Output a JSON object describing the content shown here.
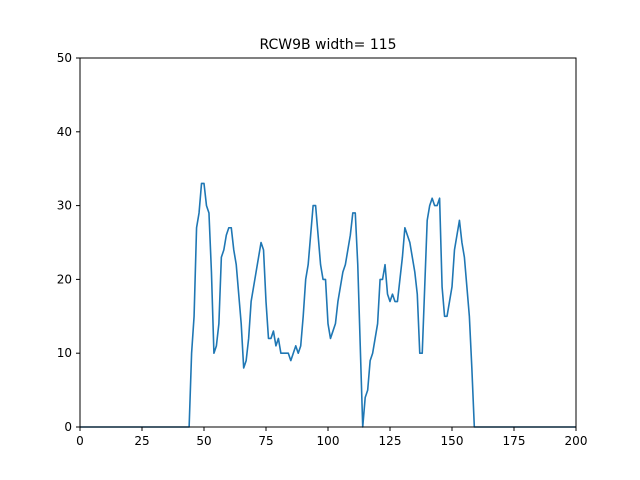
{
  "chart_data": {
    "type": "line",
    "title": "RCW9B width= 115",
    "xlabel": "",
    "ylabel": "",
    "xlim": [
      0,
      200
    ],
    "ylim": [
      0,
      50
    ],
    "xticks": [
      0,
      25,
      50,
      75,
      100,
      125,
      150,
      175,
      200
    ],
    "yticks": [
      0,
      10,
      20,
      30,
      40,
      50
    ],
    "grid": false,
    "series_color": "#1f77b4",
    "series": [
      {
        "x": [
          0,
          1,
          2,
          3,
          4,
          5,
          6,
          7,
          8,
          9,
          10,
          11,
          12,
          13,
          14,
          15,
          16,
          17,
          18,
          19,
          20,
          21,
          22,
          23,
          24,
          25,
          26,
          27,
          28,
          29,
          30,
          31,
          32,
          33,
          34,
          35,
          36,
          37,
          38,
          39,
          40,
          41,
          42,
          43,
          44,
          45,
          46,
          47,
          48,
          49,
          50,
          51,
          52,
          53,
          54,
          55,
          56,
          57,
          58,
          59,
          60,
          61,
          62,
          63,
          64,
          65,
          66,
          67,
          68,
          69,
          70,
          71,
          72,
          73,
          74,
          75,
          76,
          77,
          78,
          79,
          80,
          81,
          82,
          83,
          84,
          85,
          86,
          87,
          88,
          89,
          90,
          91,
          92,
          93,
          94,
          95,
          96,
          97,
          98,
          99,
          100,
          101,
          102,
          103,
          104,
          105,
          106,
          107,
          108,
          109,
          110,
          111,
          112,
          113,
          114,
          115,
          116,
          117,
          118,
          119,
          120,
          121,
          122,
          123,
          124,
          125,
          126,
          127,
          128,
          129,
          130,
          131,
          132,
          133,
          134,
          135,
          136,
          137,
          138,
          139,
          140,
          141,
          142,
          143,
          144,
          145,
          146,
          147,
          148,
          149,
          150,
          151,
          152,
          153,
          154,
          155,
          156,
          157,
          158,
          159,
          160,
          161,
          162,
          163,
          164,
          165,
          166,
          167,
          168,
          169,
          170,
          171,
          172,
          173,
          174,
          175,
          176,
          177,
          178,
          179,
          180,
          181,
          182,
          183,
          184,
          185,
          186,
          187,
          188,
          189,
          190,
          191,
          192,
          193,
          194,
          195,
          196,
          197,
          198,
          199,
          200
        ],
        "values": [
          0,
          0,
          0,
          0,
          0,
          0,
          0,
          0,
          0,
          0,
          0,
          0,
          0,
          0,
          0,
          0,
          0,
          0,
          0,
          0,
          0,
          0,
          0,
          0,
          0,
          0,
          0,
          0,
          0,
          0,
          0,
          0,
          0,
          0,
          0,
          0,
          0,
          0,
          0,
          0,
          0,
          0,
          0,
          0,
          0,
          10,
          15,
          27,
          29,
          33,
          33,
          30,
          29,
          21,
          10,
          11,
          14,
          23,
          24,
          26,
          27,
          27,
          24,
          22,
          18,
          14,
          8,
          9,
          12,
          17,
          19,
          21,
          23,
          25,
          24,
          17,
          12,
          12,
          13,
          11,
          12,
          10,
          10,
          10,
          10,
          9,
          10,
          11,
          10,
          11,
          15,
          20,
          22,
          26,
          30,
          30,
          26,
          22,
          20,
          20,
          14,
          12,
          13,
          14,
          17,
          19,
          21,
          22,
          24,
          26,
          29,
          29,
          22,
          11,
          0,
          4,
          5,
          9,
          10,
          12,
          14,
          20,
          20,
          22,
          18,
          17,
          18,
          17,
          17,
          20,
          23,
          27,
          26,
          25,
          23,
          21,
          18,
          10,
          10,
          19,
          28,
          30,
          31,
          30,
          30,
          31,
          19,
          15,
          15,
          17,
          19,
          24,
          26,
          28,
          25,
          23,
          19,
          15,
          8,
          0,
          0,
          0,
          0,
          0,
          0,
          0,
          0,
          0,
          0,
          0,
          0,
          0,
          0,
          0,
          0,
          0,
          0,
          0,
          0,
          0,
          0,
          0,
          0,
          0,
          0,
          0,
          0,
          0,
          0,
          0,
          0,
          0,
          0,
          0,
          0,
          0,
          0,
          0,
          0,
          0,
          0
        ]
      }
    ]
  }
}
